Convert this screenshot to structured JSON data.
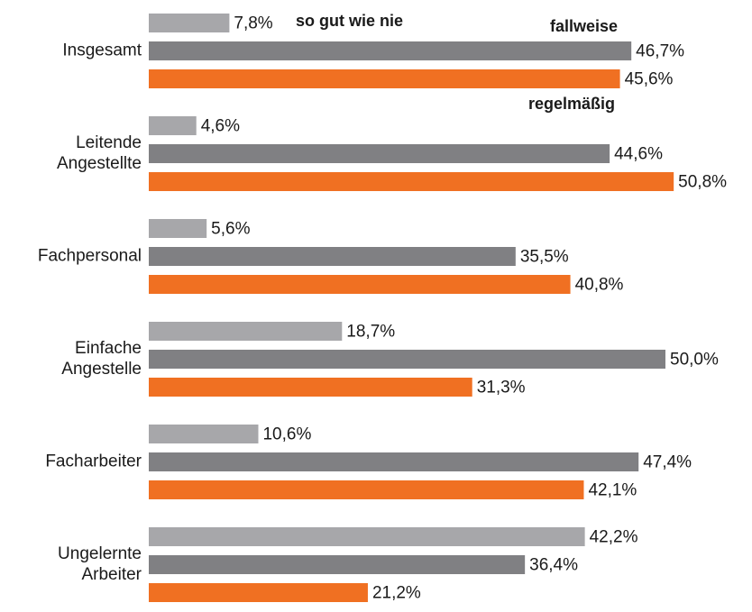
{
  "chart_data": {
    "type": "bar",
    "orientation": "horizontal",
    "categories": [
      [
        "Insgesamt"
      ],
      [
        "Leitende",
        "Angestellte"
      ],
      [
        "Fachpersonal"
      ],
      [
        "Einfache",
        "Angestelle"
      ],
      [
        "Facharbeiter"
      ],
      [
        "Ungelernte",
        "Arbeiter"
      ]
    ],
    "series": [
      {
        "name": "so gut wie nie",
        "color": "#a7a7aa",
        "values": [
          7.8,
          4.6,
          5.6,
          18.7,
          10.6,
          42.2
        ],
        "value_labels": [
          "7,8%",
          "4,6%",
          "5,6%",
          "18,7%",
          "10,6%",
          "42,2%"
        ]
      },
      {
        "name": "fallweise",
        "color": "#808083",
        "values": [
          46.7,
          44.6,
          35.5,
          50.0,
          47.4,
          36.4
        ],
        "value_labels": [
          "46,7%",
          "44,6%",
          "35,5%",
          "50,0%",
          "47,4%",
          "36,4%"
        ]
      },
      {
        "name": "regelmäßig",
        "color": "#f07022",
        "values": [
          45.6,
          50.8,
          40.8,
          31.3,
          42.1,
          21.2
        ],
        "value_labels": [
          "45,6%",
          "50,8%",
          "40,8%",
          "31,3%",
          "42,1%",
          "21,2%"
        ]
      }
    ]
  }
}
